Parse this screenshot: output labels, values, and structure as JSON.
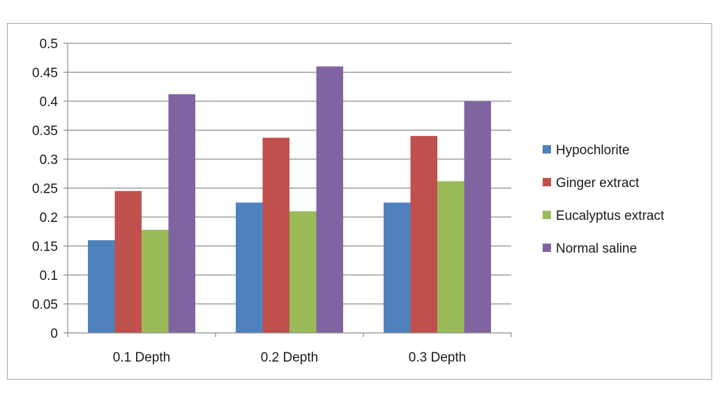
{
  "chart_data": {
    "type": "bar",
    "categories": [
      "0.1 Depth",
      "0.2 Depth",
      "0.3 Depth"
    ],
    "series": [
      {
        "name": "Hypochlorite",
        "values": [
          0.16,
          0.225,
          0.225
        ],
        "color": "#4f81bd"
      },
      {
        "name": "Ginger extract",
        "values": [
          0.245,
          0.337,
          0.34
        ],
        "color": "#c0504d"
      },
      {
        "name": "Eucalyptus extract",
        "values": [
          0.178,
          0.21,
          0.262
        ],
        "color": "#9bbb59"
      },
      {
        "name": "Normal saline",
        "values": [
          0.412,
          0.46,
          0.4
        ],
        "color": "#8064a2"
      }
    ],
    "ylim": [
      0,
      0.5
    ],
    "yticks": [
      "0",
      "0.05",
      "0.1",
      "0.15",
      "0.2",
      "0.25",
      "0.3",
      "0.35",
      "0.4",
      "0.45",
      "0.5"
    ],
    "grid": true,
    "legend_position": "right"
  }
}
